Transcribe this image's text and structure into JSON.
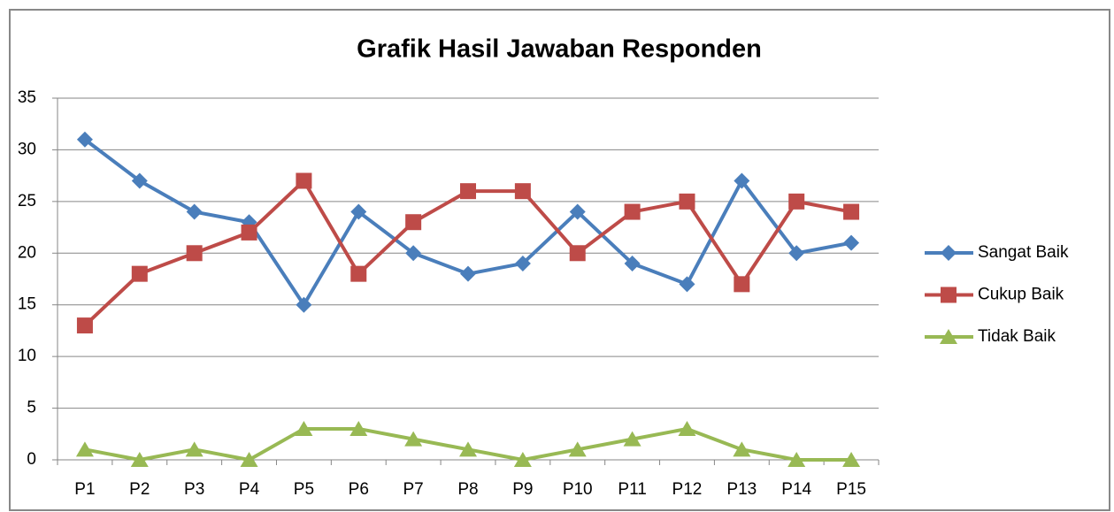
{
  "chart_data": {
    "type": "line",
    "title": "Grafik Hasil Jawaban Responden",
    "categories": [
      "P1",
      "P2",
      "P3",
      "P4",
      "P5",
      "P6",
      "P7",
      "P8",
      "P9",
      "P10",
      "P11",
      "P12",
      "P13",
      "P14",
      "P15"
    ],
    "series": [
      {
        "name": "Sangat Baik",
        "color": "#4a7ebb",
        "marker": "diamond",
        "values": [
          31,
          27,
          24,
          23,
          15,
          24,
          20,
          18,
          19,
          24,
          19,
          17,
          27,
          20,
          21
        ]
      },
      {
        "name": "Cukup Baik",
        "color": "#be4b48",
        "marker": "square",
        "values": [
          13,
          18,
          20,
          22,
          27,
          18,
          23,
          26,
          26,
          20,
          24,
          25,
          17,
          25,
          24
        ]
      },
      {
        "name": "Tidak Baik",
        "color": "#98b954",
        "marker": "triangle",
        "values": [
          1,
          0,
          1,
          0,
          3,
          3,
          2,
          1,
          0,
          1,
          2,
          3,
          1,
          0,
          0
        ]
      }
    ],
    "ylim": [
      0,
      35
    ],
    "yticks": [
      0,
      5,
      10,
      15,
      20,
      25,
      30,
      35
    ],
    "grid": true,
    "legend": "right"
  }
}
